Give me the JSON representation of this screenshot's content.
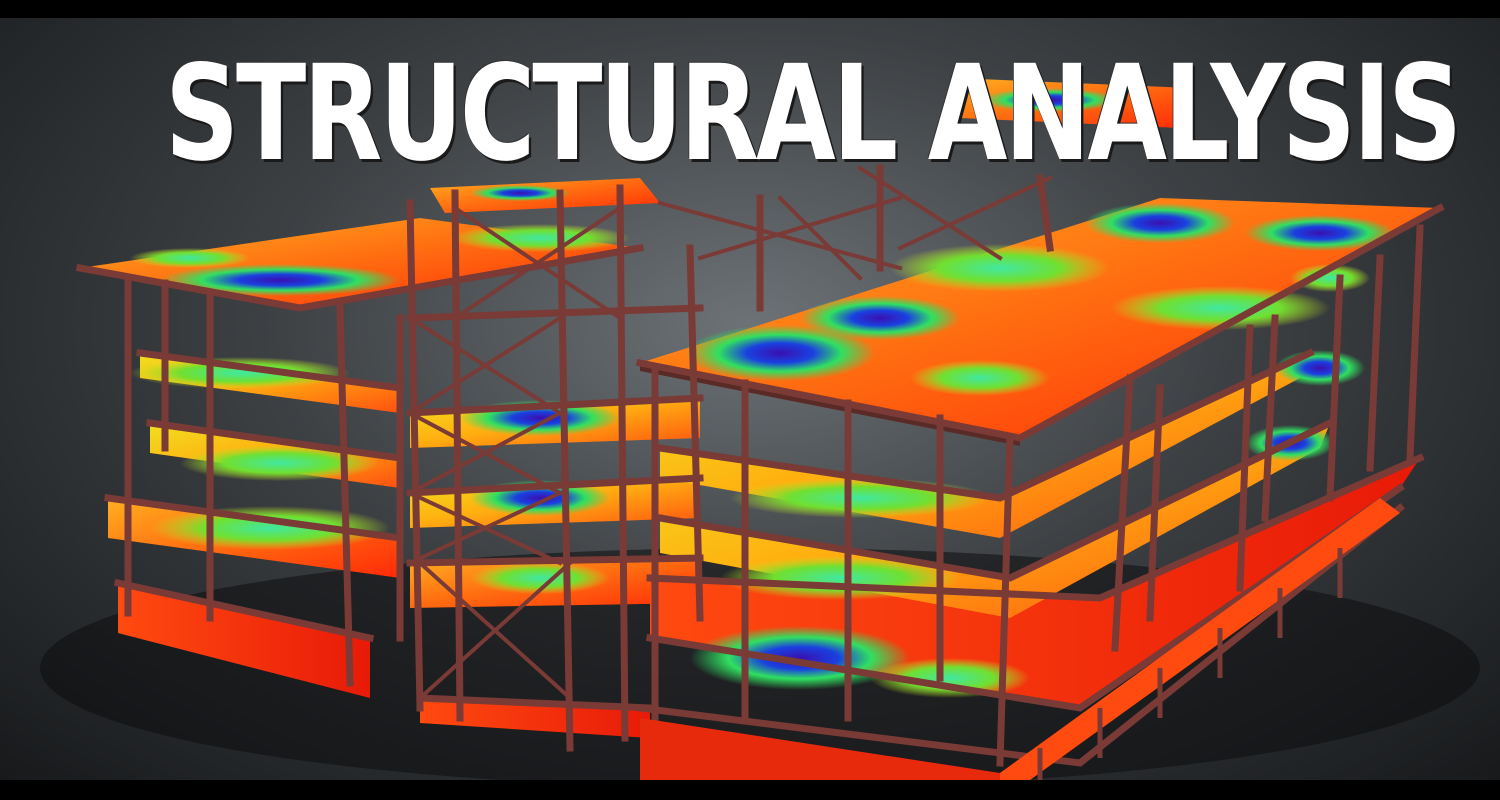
{
  "title": "STRUCTURAL ANALYSIS",
  "colors": {
    "steel_frame": "#7a3a36",
    "background": "#3d4144",
    "heat_low": "#1a22c8",
    "heat_mid": "#28e04a",
    "heat_high": "#ff2a10"
  }
}
